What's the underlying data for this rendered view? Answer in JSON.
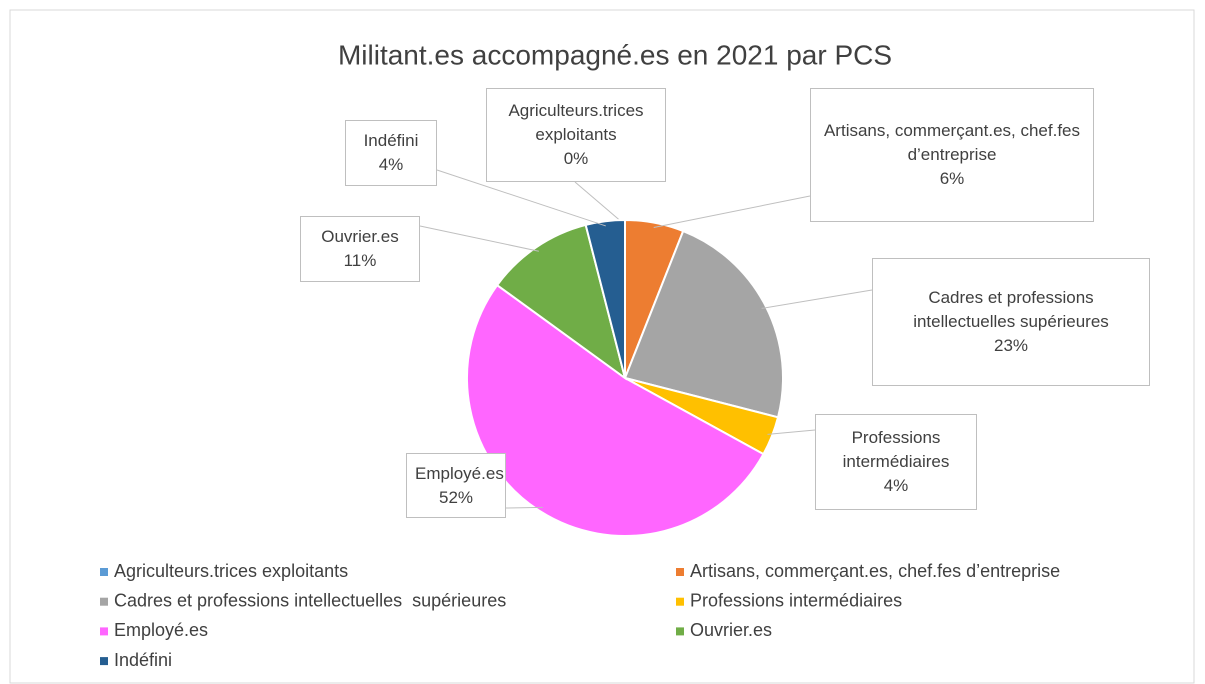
{
  "chart_data": {
    "type": "pie",
    "title": "Militant.es accompagné.es en 2021 par PCS",
    "categories": [
      "Agriculteurs.trices exploitants",
      "Artisans, commerçant.es, chef.fes d’entreprise",
      "Cadres et professions intellectuelles  supérieures",
      "Professions intermédiaires",
      "Employé.es",
      "Ouvrier.es",
      "Indéfini"
    ],
    "values": [
      0,
      6,
      23,
      4,
      52,
      11,
      4
    ],
    "value_labels": [
      "0%",
      "6%",
      "23%",
      "4%",
      "52%",
      "11%",
      "4%"
    ],
    "colors": [
      "#5b9bd5",
      "#ed7d31",
      "#a5a5a5",
      "#ffc000",
      "#ff66ff",
      "#70ad47",
      "#255e91"
    ],
    "legend": "bottom"
  }
}
